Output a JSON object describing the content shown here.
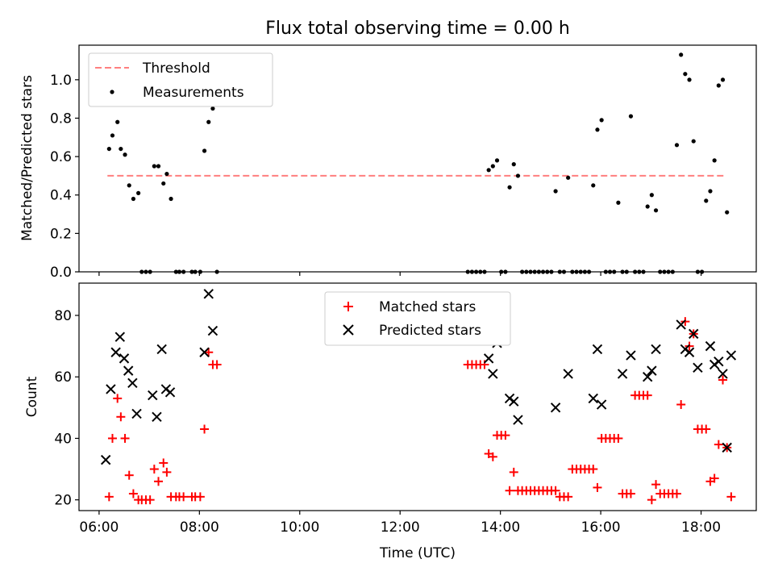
{
  "title": "Flux total observing time = 0.00 h",
  "chart_data": [
    {
      "type": "scatter",
      "panel": "top",
      "ylabel": "Matched/Predicted stars",
      "ylim": [
        0,
        1.18
      ],
      "yticks": [
        "0.0",
        "0.2",
        "0.4",
        "0.6",
        "0.8",
        "1.0"
      ],
      "yticks_values": [
        0,
        0.2,
        0.4,
        0.6,
        0.8,
        1.0
      ],
      "legend": {
        "placement": "top-left",
        "threshold_label": "Threshold",
        "measurements_label": "Measurements"
      },
      "threshold": {
        "value": 0.5,
        "x_range": [
          "06:10",
          "18:30"
        ],
        "color": "#ff7f7f"
      },
      "points": [
        [
          "06:12",
          0.64
        ],
        [
          "06:16",
          0.71
        ],
        [
          "06:22",
          0.78
        ],
        [
          "06:26",
          0.64
        ],
        [
          "06:31",
          0.61
        ],
        [
          "06:36",
          0.45
        ],
        [
          "06:41",
          0.38
        ],
        [
          "06:47",
          0.41
        ],
        [
          "06:51",
          0.0
        ],
        [
          "06:56",
          0.0
        ],
        [
          "07:01",
          0.0
        ],
        [
          "07:06",
          0.55
        ],
        [
          "07:11",
          0.55
        ],
        [
          "07:17",
          0.46
        ],
        [
          "07:21",
          0.51
        ],
        [
          "07:26",
          0.38
        ],
        [
          "07:32",
          0.0
        ],
        [
          "07:36",
          0.0
        ],
        [
          "07:41",
          0.0
        ],
        [
          "07:51",
          0.0
        ],
        [
          "07:55",
          0.0
        ],
        [
          "08:01",
          0.0
        ],
        [
          "08:06",
          0.63
        ],
        [
          "08:11",
          0.78
        ],
        [
          "08:16",
          0.85
        ],
        [
          "08:21",
          0.0
        ],
        [
          "13:21",
          0.0
        ],
        [
          "13:26",
          0.0
        ],
        [
          "13:31",
          0.0
        ],
        [
          "13:36",
          0.0
        ],
        [
          "13:41",
          0.0
        ],
        [
          "13:46",
          0.53
        ],
        [
          "13:51",
          0.55
        ],
        [
          "13:56",
          0.58
        ],
        [
          "14:01",
          0.0
        ],
        [
          "14:06",
          0.0
        ],
        [
          "14:11",
          0.44
        ],
        [
          "14:16",
          0.56
        ],
        [
          "14:21",
          0.5
        ],
        [
          "14:26",
          0.0
        ],
        [
          "14:31",
          0.0
        ],
        [
          "14:36",
          0.0
        ],
        [
          "14:41",
          0.0
        ],
        [
          "14:46",
          0.0
        ],
        [
          "14:51",
          0.0
        ],
        [
          "14:56",
          0.0
        ],
        [
          "15:01",
          0.0
        ],
        [
          "15:06",
          0.42
        ],
        [
          "15:11",
          0.0
        ],
        [
          "15:16",
          0.0
        ],
        [
          "15:21",
          0.49
        ],
        [
          "15:26",
          0.0
        ],
        [
          "15:31",
          0.0
        ],
        [
          "15:36",
          0.0
        ],
        [
          "15:41",
          0.0
        ],
        [
          "15:46",
          0.0
        ],
        [
          "15:51",
          0.45
        ],
        [
          "15:56",
          0.74
        ],
        [
          "16:01",
          0.79
        ],
        [
          "16:06",
          0.0
        ],
        [
          "16:11",
          0.0
        ],
        [
          "16:16",
          0.0
        ],
        [
          "16:21",
          0.36
        ],
        [
          "16:26",
          0.0
        ],
        [
          "16:31",
          0.0
        ],
        [
          "16:36",
          0.81
        ],
        [
          "16:41",
          0.0
        ],
        [
          "16:46",
          0.0
        ],
        [
          "16:51",
          0.0
        ],
        [
          "16:56",
          0.34
        ],
        [
          "17:01",
          0.4
        ],
        [
          "17:06",
          0.32
        ],
        [
          "17:11",
          0.0
        ],
        [
          "17:16",
          0.0
        ],
        [
          "17:21",
          0.0
        ],
        [
          "17:26",
          0.0
        ],
        [
          "17:31",
          0.66
        ],
        [
          "17:36",
          1.13
        ],
        [
          "17:41",
          1.03
        ],
        [
          "17:46",
          1.0
        ],
        [
          "17:51",
          0.68
        ],
        [
          "17:56",
          0.0
        ],
        [
          "18:01",
          0.0
        ],
        [
          "18:06",
          0.37
        ],
        [
          "18:11",
          0.42
        ],
        [
          "18:16",
          0.58
        ],
        [
          "18:21",
          0.97
        ],
        [
          "18:26",
          1.0
        ],
        [
          "18:31",
          0.31
        ]
      ]
    },
    {
      "type": "scatter",
      "panel": "bottom",
      "xlabel": "Time (UTC)",
      "ylabel": "Count",
      "xlim": [
        "05:36",
        "19:06"
      ],
      "ylim": [
        16.5,
        90.5
      ],
      "xticks": [
        "06:00",
        "08:00",
        "10:00",
        "12:00",
        "14:00",
        "16:00",
        "18:00"
      ],
      "yticks": [
        "20",
        "40",
        "60",
        "80"
      ],
      "yticks_values": [
        20,
        40,
        60,
        80
      ],
      "legend": {
        "placement": "top-center"
      },
      "series": [
        {
          "name": "Matched stars",
          "marker": "+",
          "color": "#ff0000",
          "points": [
            [
              "06:12",
              21
            ],
            [
              "06:16",
              40
            ],
            [
              "06:22",
              53
            ],
            [
              "06:26",
              47
            ],
            [
              "06:31",
              40
            ],
            [
              "06:36",
              28
            ],
            [
              "06:41",
              22
            ],
            [
              "06:47",
              20
            ],
            [
              "06:51",
              20
            ],
            [
              "06:56",
              20
            ],
            [
              "07:01",
              20
            ],
            [
              "07:06",
              30
            ],
            [
              "07:11",
              26
            ],
            [
              "07:17",
              32
            ],
            [
              "07:21",
              29
            ],
            [
              "07:26",
              21
            ],
            [
              "07:32",
              21
            ],
            [
              "07:36",
              21
            ],
            [
              "07:41",
              21
            ],
            [
              "07:51",
              21
            ],
            [
              "07:55",
              21
            ],
            [
              "08:01",
              21
            ],
            [
              "08:06",
              43
            ],
            [
              "08:11",
              68
            ],
            [
              "08:16",
              64
            ],
            [
              "08:21",
              64
            ],
            [
              "13:21",
              64
            ],
            [
              "13:26",
              64
            ],
            [
              "13:31",
              64
            ],
            [
              "13:36",
              64
            ],
            [
              "13:41",
              64
            ],
            [
              "13:46",
              35
            ],
            [
              "13:51",
              34
            ],
            [
              "13:56",
              41
            ],
            [
              "14:01",
              41
            ],
            [
              "14:06",
              41
            ],
            [
              "14:11",
              23
            ],
            [
              "14:16",
              29
            ],
            [
              "14:21",
              23
            ],
            [
              "14:26",
              23
            ],
            [
              "14:31",
              23
            ],
            [
              "14:36",
              23
            ],
            [
              "14:41",
              23
            ],
            [
              "14:46",
              23
            ],
            [
              "14:51",
              23
            ],
            [
              "14:56",
              23
            ],
            [
              "15:01",
              23
            ],
            [
              "15:06",
              23
            ],
            [
              "15:11",
              21
            ],
            [
              "15:16",
              21
            ],
            [
              "15:21",
              21
            ],
            [
              "15:26",
              30
            ],
            [
              "15:31",
              30
            ],
            [
              "15:36",
              30
            ],
            [
              "15:41",
              30
            ],
            [
              "15:46",
              30
            ],
            [
              "15:51",
              30
            ],
            [
              "15:56",
              24
            ],
            [
              "16:01",
              40
            ],
            [
              "16:06",
              40
            ],
            [
              "16:11",
              40
            ],
            [
              "16:16",
              40
            ],
            [
              "16:21",
              40
            ],
            [
              "16:26",
              22
            ],
            [
              "16:31",
              22
            ],
            [
              "16:36",
              22
            ],
            [
              "16:41",
              54
            ],
            [
              "16:46",
              54
            ],
            [
              "16:51",
              54
            ],
            [
              "16:56",
              54
            ],
            [
              "17:01",
              20
            ],
            [
              "17:06",
              25
            ],
            [
              "17:11",
              22
            ],
            [
              "17:16",
              22
            ],
            [
              "17:21",
              22
            ],
            [
              "17:26",
              22
            ],
            [
              "17:31",
              22
            ],
            [
              "17:36",
              51
            ],
            [
              "17:41",
              78
            ],
            [
              "17:46",
              70
            ],
            [
              "17:51",
              74
            ],
            [
              "17:56",
              43
            ],
            [
              "18:01",
              43
            ],
            [
              "18:06",
              43
            ],
            [
              "18:11",
              26
            ],
            [
              "18:16",
              27
            ],
            [
              "18:21",
              38
            ],
            [
              "18:26",
              59
            ],
            [
              "18:31",
              37
            ],
            [
              "18:36",
              21
            ]
          ]
        },
        {
          "name": "Predicted stars",
          "marker": "x",
          "color": "#000000",
          "points": [
            [
              "06:08",
              33
            ],
            [
              "06:14",
              56
            ],
            [
              "06:20",
              68
            ],
            [
              "06:25",
              73
            ],
            [
              "06:30",
              66
            ],
            [
              "06:35",
              62
            ],
            [
              "06:40",
              58
            ],
            [
              "06:45",
              48
            ],
            [
              "07:04",
              54
            ],
            [
              "07:09",
              47
            ],
            [
              "07:15",
              69
            ],
            [
              "07:20",
              56
            ],
            [
              "07:25",
              55
            ],
            [
              "08:06",
              68
            ],
            [
              "08:11",
              87
            ],
            [
              "08:16",
              75
            ],
            [
              "13:46",
              66
            ],
            [
              "13:51",
              61
            ],
            [
              "13:56",
              71
            ],
            [
              "14:11",
              53
            ],
            [
              "14:16",
              52
            ],
            [
              "14:21",
              46
            ],
            [
              "15:06",
              50
            ],
            [
              "15:21",
              61
            ],
            [
              "15:51",
              53
            ],
            [
              "15:56",
              69
            ],
            [
              "16:01",
              51
            ],
            [
              "16:26",
              61
            ],
            [
              "16:36",
              67
            ],
            [
              "16:56",
              60
            ],
            [
              "17:01",
              62
            ],
            [
              "17:06",
              69
            ],
            [
              "17:36",
              77
            ],
            [
              "17:41",
              69
            ],
            [
              "17:46",
              68
            ],
            [
              "17:51",
              74
            ],
            [
              "17:56",
              63
            ],
            [
              "18:11",
              70
            ],
            [
              "18:16",
              64
            ],
            [
              "18:21",
              65
            ],
            [
              "18:26",
              61
            ],
            [
              "18:31",
              37
            ],
            [
              "18:36",
              67
            ]
          ]
        }
      ]
    }
  ]
}
